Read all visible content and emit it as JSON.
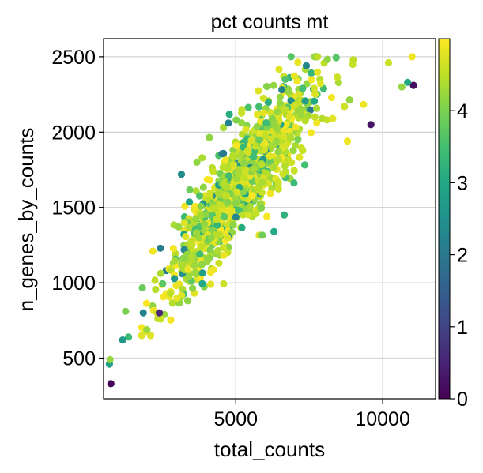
{
  "chart_data": {
    "type": "scatter",
    "title": "pct counts mt",
    "xlabel": "total_counts",
    "ylabel": "n_genes_by_counts",
    "xlim": [
      500,
      11800
    ],
    "ylim": [
      230,
      2620
    ],
    "xticks": [
      5000,
      10000
    ],
    "yticks": [
      500,
      1000,
      1500,
      2000,
      2500
    ],
    "grid": true,
    "colormap": "viridis",
    "color_range": [
      0,
      5
    ],
    "colorbar_ticks": [
      0,
      1,
      2,
      3,
      4
    ],
    "cloud_shape": {
      "trend_points": [
        [
          800,
          380
        ],
        [
          1500,
          700
        ],
        [
          2500,
          950
        ],
        [
          3500,
          1250
        ],
        [
          4500,
          1500
        ],
        [
          5500,
          1750
        ],
        [
          6500,
          2000
        ],
        [
          7500,
          2200
        ],
        [
          8500,
          2350
        ],
        [
          10000,
          2430
        ],
        [
          11000,
          2470
        ]
      ],
      "point_count": 1000
    },
    "outliers": [
      {
        "x": 750,
        "y": 330,
        "c": 0.1
      },
      {
        "x": 700,
        "y": 460,
        "c": 2.8
      },
      {
        "x": 720,
        "y": 490,
        "c": 4.2
      },
      {
        "x": 1350,
        "y": 640,
        "c": 3.4
      },
      {
        "x": 1150,
        "y": 620,
        "c": 2.7
      },
      {
        "x": 2450,
        "y": 760,
        "c": 4.6
      },
      {
        "x": 2400,
        "y": 800,
        "c": 0.6
      },
      {
        "x": 1850,
        "y": 800,
        "c": 2.2
      },
      {
        "x": 1250,
        "y": 810,
        "c": 4.0
      },
      {
        "x": 9600,
        "y": 2050,
        "c": 0.3
      },
      {
        "x": 11050,
        "y": 2310,
        "c": 0.2
      },
      {
        "x": 10850,
        "y": 2330,
        "c": 3.0
      },
      {
        "x": 10650,
        "y": 2300,
        "c": 4.2
      },
      {
        "x": 11000,
        "y": 2500,
        "c": 4.9
      },
      {
        "x": 10200,
        "y": 2460,
        "c": 4.6
      },
      {
        "x": 9000,
        "y": 2480,
        "c": 4.5
      },
      {
        "x": 8700,
        "y": 2170,
        "c": 4.6
      },
      {
        "x": 8300,
        "y": 2090,
        "c": 4.8
      },
      {
        "x": 6300,
        "y": 1340,
        "c": 3.0
      },
      {
        "x": 6650,
        "y": 1450,
        "c": 3.2
      },
      {
        "x": 4750,
        "y": 2060,
        "c": 2.2
      },
      {
        "x": 3150,
        "y": 1720,
        "c": 2.4
      },
      {
        "x": 7400,
        "y": 2440,
        "c": 2.3
      },
      {
        "x": 8800,
        "y": 1940,
        "c": 4.9
      }
    ]
  }
}
